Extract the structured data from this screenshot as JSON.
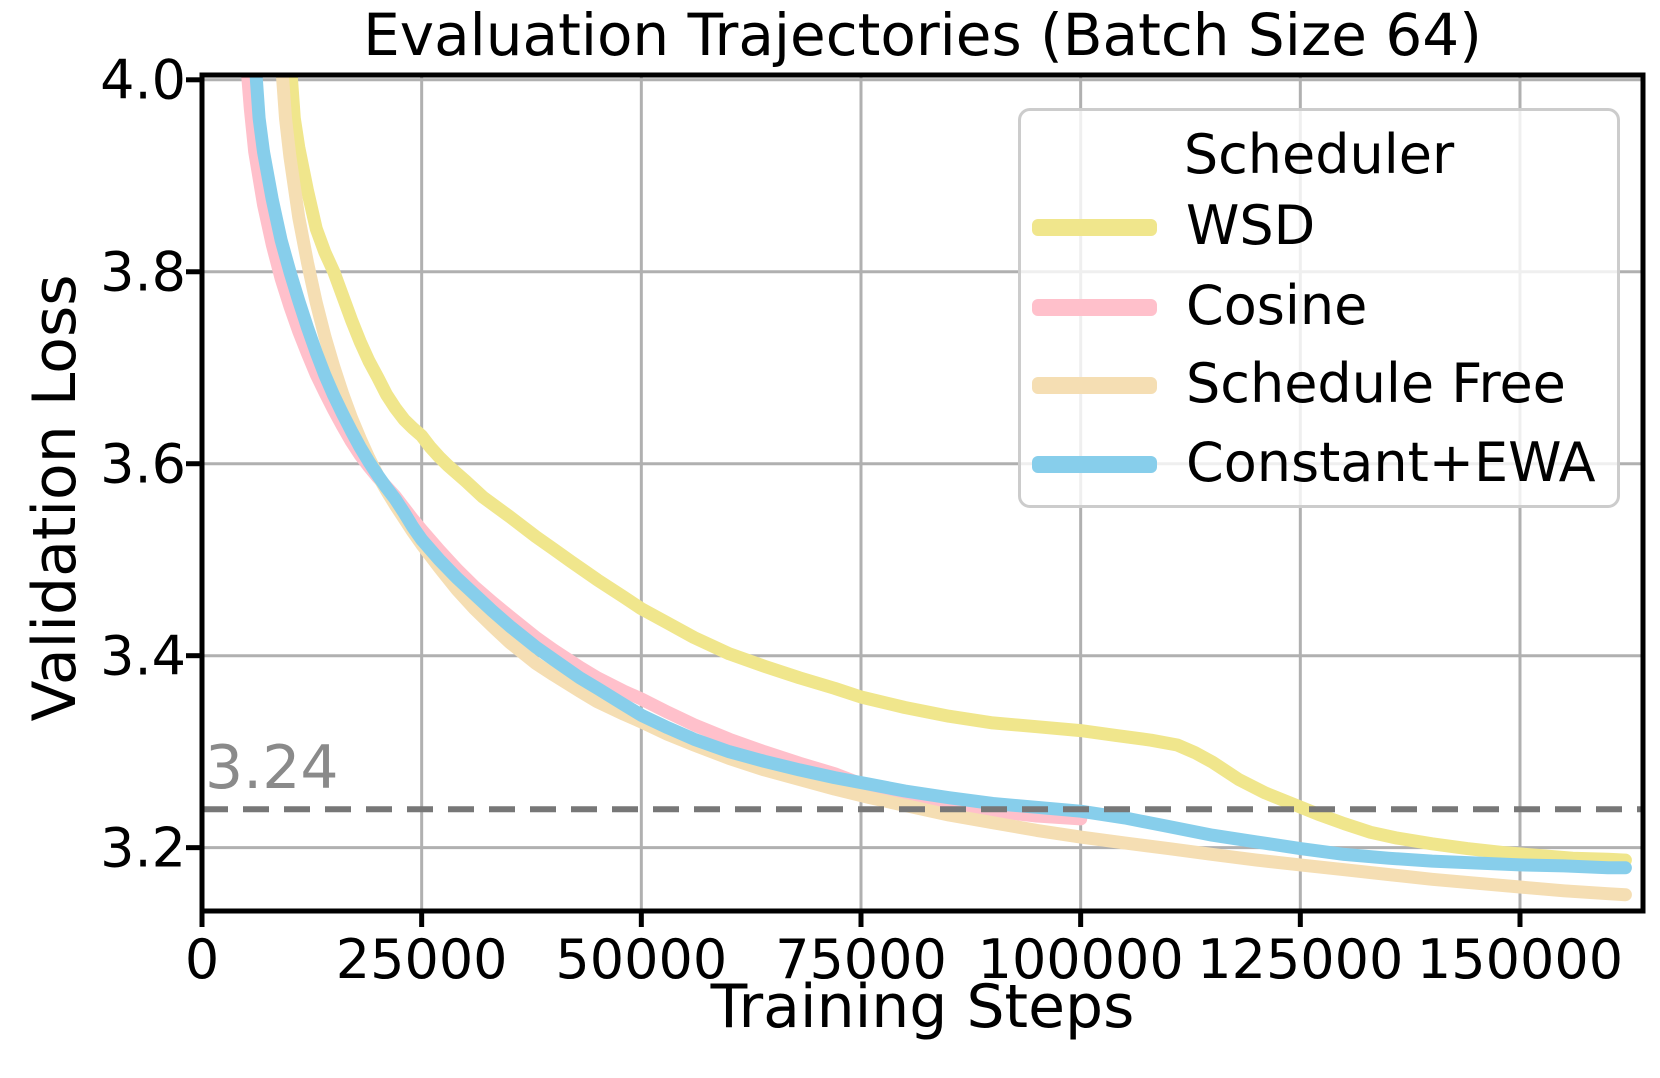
{
  "chart_data": {
    "type": "line",
    "title": "Evaluation Trajectories (Batch Size 64)",
    "xlabel": "Training Steps",
    "ylabel": "Validation Loss",
    "xlim": [
      0,
      164000
    ],
    "ylim": [
      3.134,
      4.005
    ],
    "x_ticks": [
      0,
      25000,
      50000,
      75000,
      100000,
      125000,
      150000
    ],
    "y_ticks": [
      3.2,
      3.4,
      3.6,
      3.8,
      4.0
    ],
    "grid": true,
    "grid_color": "#b0b0b0",
    "spine_color": "#000000",
    "legend": {
      "title": "Scheduler",
      "position": "upper right"
    },
    "annotation": {
      "text": "3.24",
      "value": 3.24,
      "text_color": "#8a8a8a",
      "line_color": "#777777",
      "line_style": "dashed"
    },
    "series": [
      {
        "name": "WSD",
        "color": "#F0E68C",
        "points": [
          [
            9800,
            4.05
          ],
          [
            10500,
            3.96
          ],
          [
            11000,
            3.93
          ],
          [
            12000,
            3.885
          ],
          [
            13000,
            3.845
          ],
          [
            14000,
            3.82
          ],
          [
            15000,
            3.8
          ],
          [
            16000,
            3.775
          ],
          [
            17000,
            3.75
          ],
          [
            18000,
            3.727
          ],
          [
            19000,
            3.707
          ],
          [
            20000,
            3.69
          ],
          [
            21000,
            3.672
          ],
          [
            22000,
            3.658
          ],
          [
            23000,
            3.646
          ],
          [
            24000,
            3.637
          ],
          [
            25000,
            3.629
          ],
          [
            26000,
            3.617
          ],
          [
            27000,
            3.607
          ],
          [
            28000,
            3.598
          ],
          [
            30000,
            3.582
          ],
          [
            32000,
            3.565
          ],
          [
            35000,
            3.545
          ],
          [
            38000,
            3.524
          ],
          [
            40000,
            3.511
          ],
          [
            42000,
            3.498
          ],
          [
            45000,
            3.479
          ],
          [
            48000,
            3.461
          ],
          [
            50000,
            3.449
          ],
          [
            53000,
            3.434
          ],
          [
            56000,
            3.419
          ],
          [
            60000,
            3.402
          ],
          [
            64000,
            3.389
          ],
          [
            68000,
            3.377
          ],
          [
            72000,
            3.366
          ],
          [
            75000,
            3.357
          ],
          [
            80000,
            3.346
          ],
          [
            85000,
            3.337
          ],
          [
            90000,
            3.33
          ],
          [
            95000,
            3.326
          ],
          [
            100000,
            3.322
          ],
          [
            104000,
            3.317
          ],
          [
            108000,
            3.312
          ],
          [
            111000,
            3.307
          ],
          [
            113000,
            3.299
          ],
          [
            115000,
            3.289
          ],
          [
            118000,
            3.271
          ],
          [
            121000,
            3.257
          ],
          [
            124000,
            3.246
          ],
          [
            127000,
            3.235
          ],
          [
            130000,
            3.225
          ],
          [
            133000,
            3.216
          ],
          [
            136000,
            3.21
          ],
          [
            140000,
            3.204
          ],
          [
            144000,
            3.199
          ],
          [
            148000,
            3.195
          ],
          [
            152000,
            3.192
          ],
          [
            156000,
            3.189
          ],
          [
            160000,
            3.188
          ],
          [
            162000,
            3.187
          ]
        ]
      },
      {
        "name": "Cosine",
        "color": "#FFC0CB",
        "points": [
          [
            4800,
            4.05
          ],
          [
            5500,
            3.97
          ],
          [
            6000,
            3.925
          ],
          [
            7000,
            3.87
          ],
          [
            8000,
            3.828
          ],
          [
            9000,
            3.793
          ],
          [
            10000,
            3.764
          ],
          [
            11000,
            3.738
          ],
          [
            12000,
            3.715
          ],
          [
            13000,
            3.693
          ],
          [
            14000,
            3.674
          ],
          [
            15000,
            3.656
          ],
          [
            16000,
            3.639
          ],
          [
            17000,
            3.623
          ],
          [
            18000,
            3.609
          ],
          [
            19000,
            3.597
          ],
          [
            20000,
            3.586
          ],
          [
            21000,
            3.576
          ],
          [
            22000,
            3.566
          ],
          [
            23000,
            3.554
          ],
          [
            24000,
            3.542
          ],
          [
            25000,
            3.531
          ],
          [
            27000,
            3.51
          ],
          [
            29000,
            3.49
          ],
          [
            31000,
            3.472
          ],
          [
            33000,
            3.456
          ],
          [
            35000,
            3.441
          ],
          [
            38000,
            3.419
          ],
          [
            40000,
            3.406
          ],
          [
            43000,
            3.388
          ],
          [
            45000,
            3.377
          ],
          [
            48000,
            3.363
          ],
          [
            50000,
            3.355
          ],
          [
            53000,
            3.341
          ],
          [
            56000,
            3.328
          ],
          [
            60000,
            3.313
          ],
          [
            64000,
            3.3
          ],
          [
            68000,
            3.288
          ],
          [
            72000,
            3.277
          ],
          [
            76000,
            3.263
          ],
          [
            80000,
            3.254
          ],
          [
            85000,
            3.245
          ],
          [
            90000,
            3.238
          ],
          [
            95000,
            3.233
          ],
          [
            100000,
            3.23
          ]
        ]
      },
      {
        "name": "Schedule Free",
        "color": "#F5DEB3",
        "points": [
          [
            8800,
            4.05
          ],
          [
            9500,
            3.96
          ],
          [
            10000,
            3.92
          ],
          [
            11000,
            3.857
          ],
          [
            12000,
            3.81
          ],
          [
            13000,
            3.768
          ],
          [
            14000,
            3.732
          ],
          [
            15000,
            3.701
          ],
          [
            16000,
            3.673
          ],
          [
            17000,
            3.648
          ],
          [
            18000,
            3.626
          ],
          [
            19000,
            3.606
          ],
          [
            20000,
            3.588
          ],
          [
            21000,
            3.572
          ],
          [
            22000,
            3.557
          ],
          [
            23000,
            3.543
          ],
          [
            24000,
            3.529
          ],
          [
            25000,
            3.516
          ],
          [
            27000,
            3.492
          ],
          [
            29000,
            3.469
          ],
          [
            31000,
            3.449
          ],
          [
            33000,
            3.431
          ],
          [
            35000,
            3.414
          ],
          [
            38000,
            3.392
          ],
          [
            40000,
            3.38
          ],
          [
            43000,
            3.363
          ],
          [
            45000,
            3.352
          ],
          [
            48000,
            3.339
          ],
          [
            50000,
            3.331
          ],
          [
            53000,
            3.318
          ],
          [
            56000,
            3.307
          ],
          [
            60000,
            3.293
          ],
          [
            64000,
            3.281
          ],
          [
            68000,
            3.271
          ],
          [
            72000,
            3.261
          ],
          [
            76000,
            3.252
          ],
          [
            80000,
            3.244
          ],
          [
            85000,
            3.234
          ],
          [
            90000,
            3.226
          ],
          [
            95000,
            3.218
          ],
          [
            100000,
            3.211
          ],
          [
            105000,
            3.205
          ],
          [
            110000,
            3.199
          ],
          [
            115000,
            3.193
          ],
          [
            120000,
            3.187
          ],
          [
            125000,
            3.182
          ],
          [
            130000,
            3.177
          ],
          [
            135000,
            3.172
          ],
          [
            140000,
            3.167
          ],
          [
            145000,
            3.163
          ],
          [
            150000,
            3.159
          ],
          [
            155000,
            3.155
          ],
          [
            160000,
            3.152
          ],
          [
            162000,
            3.151
          ]
        ]
      },
      {
        "name": "Constant+EWA",
        "color": "#87CEEB",
        "points": [
          [
            5800,
            4.05
          ],
          [
            6500,
            3.96
          ],
          [
            7000,
            3.925
          ],
          [
            8000,
            3.875
          ],
          [
            9000,
            3.833
          ],
          [
            10000,
            3.8
          ],
          [
            11000,
            3.77
          ],
          [
            12000,
            3.742
          ],
          [
            13000,
            3.716
          ],
          [
            14000,
            3.692
          ],
          [
            15000,
            3.671
          ],
          [
            16000,
            3.652
          ],
          [
            17000,
            3.634
          ],
          [
            18000,
            3.617
          ],
          [
            19000,
            3.602
          ],
          [
            20000,
            3.588
          ],
          [
            21000,
            3.575
          ],
          [
            22000,
            3.563
          ],
          [
            23000,
            3.549
          ],
          [
            24000,
            3.534
          ],
          [
            25000,
            3.521
          ],
          [
            27000,
            3.5
          ],
          [
            29000,
            3.481
          ],
          [
            31000,
            3.464
          ],
          [
            33000,
            3.447
          ],
          [
            35000,
            3.431
          ],
          [
            38000,
            3.409
          ],
          [
            40000,
            3.396
          ],
          [
            43000,
            3.377
          ],
          [
            45000,
            3.366
          ],
          [
            48000,
            3.349
          ],
          [
            50000,
            3.338
          ],
          [
            53000,
            3.325
          ],
          [
            56000,
            3.313
          ],
          [
            60000,
            3.3
          ],
          [
            64000,
            3.29
          ],
          [
            68000,
            3.281
          ],
          [
            72000,
            3.273
          ],
          [
            76000,
            3.266
          ],
          [
            80000,
            3.259
          ],
          [
            85000,
            3.252
          ],
          [
            90000,
            3.246
          ],
          [
            95000,
            3.242
          ],
          [
            100000,
            3.238
          ],
          [
            105000,
            3.231
          ],
          [
            110000,
            3.222
          ],
          [
            115000,
            3.213
          ],
          [
            120000,
            3.206
          ],
          [
            125000,
            3.199
          ],
          [
            130000,
            3.193
          ],
          [
            135000,
            3.189
          ],
          [
            140000,
            3.186
          ],
          [
            145000,
            3.184
          ],
          [
            150000,
            3.182
          ],
          [
            155000,
            3.181
          ],
          [
            160000,
            3.179
          ],
          [
            162000,
            3.179
          ]
        ]
      }
    ]
  }
}
